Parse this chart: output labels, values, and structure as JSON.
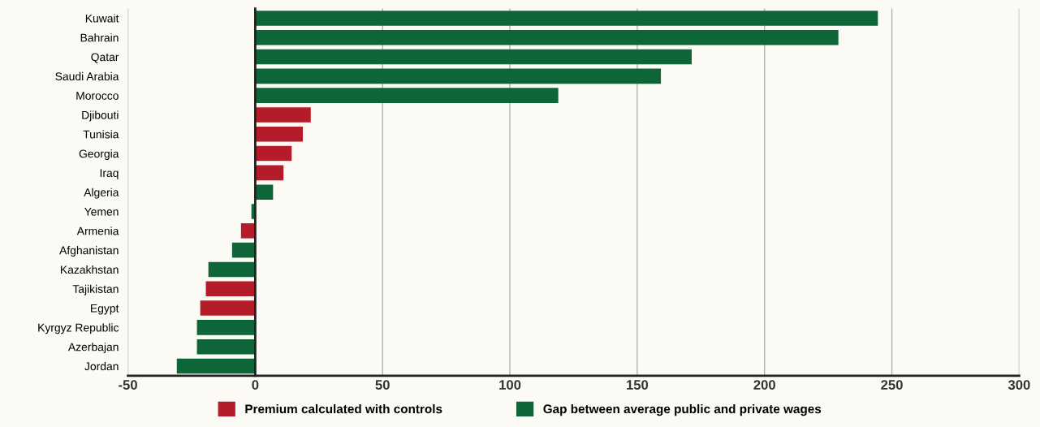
{
  "chart_data": {
    "type": "bar",
    "orientation": "horizontal",
    "categories": [
      "Kuwait",
      "Bahrain",
      "Qatar",
      "Saudi Arabia",
      "Morocco",
      "Djibouti",
      "Tunisia",
      "Georgia",
      "Iraq",
      "Algeria",
      "Yemen",
      "Armenia",
      "Afghanistan",
      "Kazakhstan",
      "Tajikistan",
      "Egypt",
      "Kyrgyz Republic",
      "Azerbajan",
      "Jordan"
    ],
    "series": [
      {
        "name": "Premium calculated with controls",
        "color": "#b51c2a",
        "values": [
          null,
          null,
          null,
          null,
          null,
          21.8,
          18.7,
          14.3,
          11.1,
          null,
          null,
          -5.6,
          null,
          null,
          -19.4,
          -21.6,
          null,
          null,
          null
        ]
      },
      {
        "name": "Gap between average public and private wages",
        "color": "#0e6638",
        "values": [
          244.5,
          229,
          171.4,
          159.3,
          119,
          null,
          null,
          null,
          null,
          7,
          -1.5,
          null,
          -9.1,
          -18.4,
          null,
          null,
          -22.9,
          -22.9,
          -30.8
        ]
      }
    ],
    "xlim": [
      -50,
      300
    ],
    "xticks": [
      -50,
      0,
      50,
      100,
      150,
      200,
      250,
      300
    ],
    "grid": "x",
    "legend": "bottom"
  }
}
